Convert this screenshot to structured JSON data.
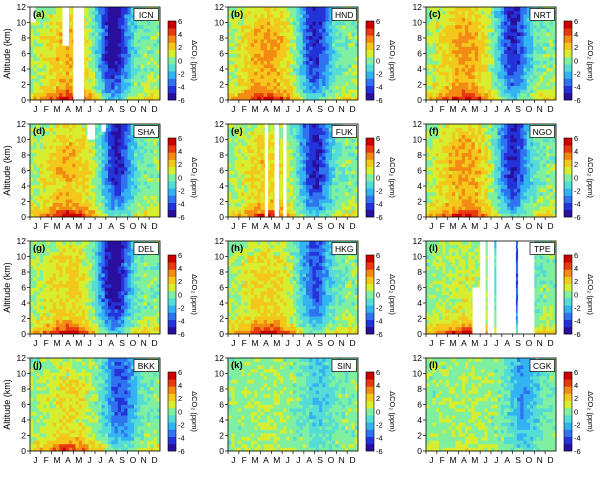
{
  "figure": {
    "y_axis_label": "Altitude (km)",
    "colorbar_label": "ΔCO₂ (ppm)",
    "colorbar_ticks": [
      "6",
      "4",
      "2",
      "0",
      "-2",
      "-4",
      "-6"
    ],
    "colorbar_colors": [
      "#2a0f9e",
      "#2433d9",
      "#2f73f0",
      "#33b3f2",
      "#55dcd6",
      "#7ff0a0",
      "#d6ee2f",
      "#f4c71b",
      "#f28a14",
      "#e83a0f",
      "#cc0000"
    ]
  },
  "chart_data": [
    {
      "type": "heatmap",
      "station": "ICN",
      "panel_label": "(a)",
      "x": [
        "J",
        "F",
        "M",
        "A",
        "M",
        "J",
        "J",
        "A",
        "S",
        "O",
        "N",
        "D"
      ],
      "xlim": [
        1,
        13
      ],
      "ylim": [
        0,
        12
      ],
      "yticks": [
        0,
        2,
        4,
        6,
        8,
        10,
        12
      ],
      "ylabel": "Altitude (km)",
      "zlabel": "ΔCO₂ (ppm)",
      "zlim": [
        -6,
        6
      ],
      "ztick_step": 2,
      "ground_anomaly_ppm": 5.5,
      "aloft_spring_ppm": 2.5,
      "summer_minimum_ppm": -6,
      "summer_minimum_month": 8.7,
      "data_gaps": [
        [
          5.0,
          6.0,
          0,
          12
        ],
        [
          1.0,
          1.5,
          10,
          12
        ],
        [
          4.0,
          4.6,
          7,
          12
        ]
      ]
    },
    {
      "type": "heatmap",
      "station": "HND",
      "panel_label": "(b)",
      "x": [
        "J",
        "F",
        "M",
        "A",
        "M",
        "J",
        "J",
        "A",
        "S",
        "O",
        "N",
        "D"
      ],
      "xlim": [
        1,
        13
      ],
      "ylim": [
        0,
        12
      ],
      "yticks": [
        0,
        2,
        4,
        6,
        8,
        10,
        12
      ],
      "ylabel": "Altitude (km)",
      "zlabel": "ΔCO₂ (ppm)",
      "zlim": [
        -6,
        6
      ],
      "ztick_step": 2,
      "ground_anomaly_ppm": 5.5,
      "aloft_spring_ppm": 3.0,
      "summer_minimum_ppm": -5,
      "summer_minimum_month": 9.0,
      "data_gaps": []
    },
    {
      "type": "heatmap",
      "station": "NRT",
      "panel_label": "(c)",
      "x": [
        "J",
        "F",
        "M",
        "A",
        "M",
        "J",
        "J",
        "A",
        "S",
        "O",
        "N",
        "D"
      ],
      "xlim": [
        1,
        13
      ],
      "ylim": [
        0,
        12
      ],
      "yticks": [
        0,
        2,
        4,
        6,
        8,
        10,
        12
      ],
      "ylabel": "Altitude (km)",
      "zlabel": "ΔCO₂ (ppm)",
      "zlim": [
        -6,
        6
      ],
      "ztick_step": 2,
      "ground_anomaly_ppm": 5.5,
      "aloft_spring_ppm": 3.0,
      "summer_minimum_ppm": -5,
      "summer_minimum_month": 9.0,
      "data_gaps": []
    },
    {
      "type": "heatmap",
      "station": "SHA",
      "panel_label": "(d)",
      "x": [
        "J",
        "F",
        "M",
        "A",
        "M",
        "J",
        "J",
        "A",
        "S",
        "O",
        "N",
        "D"
      ],
      "xlim": [
        1,
        13
      ],
      "ylim": [
        0,
        12
      ],
      "yticks": [
        0,
        2,
        4,
        6,
        8,
        10,
        12
      ],
      "ylabel": "Altitude (km)",
      "zlabel": "ΔCO₂ (ppm)",
      "zlim": [
        -6,
        6
      ],
      "ztick_step": 2,
      "ground_anomaly_ppm": 6.0,
      "aloft_spring_ppm": 2.5,
      "summer_minimum_ppm": -5,
      "summer_minimum_month": 9.0,
      "data_gaps": [
        [
          6.3,
          7.0,
          10,
          12
        ],
        [
          7.6,
          8.0,
          11,
          12
        ]
      ]
    },
    {
      "type": "heatmap",
      "station": "FUK",
      "panel_label": "(e)",
      "x": [
        "J",
        "F",
        "M",
        "A",
        "M",
        "J",
        "J",
        "A",
        "S",
        "O",
        "N",
        "D"
      ],
      "xlim": [
        1,
        13
      ],
      "ylim": [
        0,
        12
      ],
      "yticks": [
        0,
        2,
        4,
        6,
        8,
        10,
        12
      ],
      "ylabel": "Altitude (km)",
      "zlabel": "ΔCO₂ (ppm)",
      "zlim": [
        -6,
        6
      ],
      "ztick_step": 2,
      "ground_anomaly_ppm": 5.0,
      "aloft_spring_ppm": 2.0,
      "summer_minimum_ppm": -5,
      "summer_minimum_month": 9.0,
      "data_gaps": [
        [
          4.4,
          4.7,
          0,
          12
        ],
        [
          5.3,
          5.7,
          0,
          12
        ],
        [
          6.1,
          6.4,
          0,
          12
        ],
        [
          11.6,
          13.0,
          10.5,
          12
        ]
      ]
    },
    {
      "type": "heatmap",
      "station": "NGO",
      "panel_label": "(f)",
      "x": [
        "J",
        "F",
        "M",
        "A",
        "M",
        "J",
        "J",
        "A",
        "S",
        "O",
        "N",
        "D"
      ],
      "xlim": [
        1,
        13
      ],
      "ylim": [
        0,
        12
      ],
      "yticks": [
        0,
        2,
        4,
        6,
        8,
        10,
        12
      ],
      "ylabel": "Altitude (km)",
      "zlabel": "ΔCO₂ (ppm)",
      "zlim": [
        -6,
        6
      ],
      "ztick_step": 2,
      "ground_anomaly_ppm": 5.5,
      "aloft_spring_ppm": 3.0,
      "summer_minimum_ppm": -5,
      "summer_minimum_month": 9.0,
      "data_gaps": []
    },
    {
      "type": "heatmap",
      "station": "DEL",
      "panel_label": "(g)",
      "x": [
        "J",
        "F",
        "M",
        "A",
        "M",
        "J",
        "J",
        "A",
        "S",
        "O",
        "N",
        "D"
      ],
      "xlim": [
        1,
        13
      ],
      "ylim": [
        0,
        12
      ],
      "yticks": [
        0,
        2,
        4,
        6,
        8,
        10,
        12
      ],
      "ylabel": "Altitude (km)",
      "zlabel": "ΔCO₂ (ppm)",
      "zlim": [
        -6,
        6
      ],
      "ztick_step": 2,
      "ground_anomaly_ppm": 6.0,
      "aloft_spring_ppm": 2.0,
      "summer_minimum_ppm": -6,
      "summer_minimum_month": 8.7,
      "data_gaps": []
    },
    {
      "type": "heatmap",
      "station": "HKG",
      "panel_label": "(h)",
      "x": [
        "J",
        "F",
        "M",
        "A",
        "M",
        "J",
        "J",
        "A",
        "S",
        "O",
        "N",
        "D"
      ],
      "xlim": [
        1,
        13
      ],
      "ylim": [
        0,
        12
      ],
      "yticks": [
        0,
        2,
        4,
        6,
        8,
        10,
        12
      ],
      "ylabel": "Altitude (km)",
      "zlabel": "ΔCO₂ (ppm)",
      "zlim": [
        -6,
        6
      ],
      "ztick_step": 2,
      "ground_anomaly_ppm": 6.0,
      "aloft_spring_ppm": 2.0,
      "summer_minimum_ppm": -4,
      "summer_minimum_month": 9.0,
      "data_gaps": []
    },
    {
      "type": "heatmap",
      "station": "TPE",
      "panel_label": "(i)",
      "x": [
        "J",
        "F",
        "M",
        "A",
        "M",
        "J",
        "J",
        "A",
        "S",
        "O",
        "N",
        "D"
      ],
      "xlim": [
        1,
        13
      ],
      "ylim": [
        0,
        12
      ],
      "yticks": [
        0,
        2,
        4,
        6,
        8,
        10,
        12
      ],
      "ylabel": "Altitude (km)",
      "zlabel": "ΔCO₂ (ppm)",
      "zlim": [
        -6,
        6
      ],
      "ztick_step": 2,
      "ground_anomaly_ppm": 5.5,
      "aloft_spring_ppm": 1.0,
      "summer_minimum_ppm": -4,
      "summer_minimum_month": 9.0,
      "data_gaps": [
        [
          6.0,
          6.5,
          0,
          12
        ],
        [
          6.7,
          7.3,
          0,
          12
        ],
        [
          7.5,
          9.3,
          0,
          12
        ],
        [
          9.5,
          11.0,
          0,
          12
        ],
        [
          5.3,
          6.0,
          0,
          6
        ]
      ]
    },
    {
      "type": "heatmap",
      "station": "BKK",
      "panel_label": "(j)",
      "x": [
        "J",
        "F",
        "M",
        "A",
        "M",
        "J",
        "J",
        "A",
        "S",
        "O",
        "N",
        "D"
      ],
      "xlim": [
        1,
        13
      ],
      "ylim": [
        0,
        12
      ],
      "yticks": [
        0,
        2,
        4,
        6,
        8,
        10,
        12
      ],
      "ylabel": "Altitude (km)",
      "zlabel": "ΔCO₂ (ppm)",
      "zlim": [
        -6,
        6
      ],
      "ztick_step": 2,
      "ground_anomaly_ppm": 5.0,
      "aloft_spring_ppm": 1.5,
      "summer_minimum_ppm": -4,
      "summer_minimum_month": 9.3,
      "data_gaps": []
    },
    {
      "type": "heatmap",
      "station": "SIN",
      "panel_label": "(k)",
      "x": [
        "J",
        "F",
        "M",
        "A",
        "M",
        "J",
        "J",
        "A",
        "S",
        "O",
        "N",
        "D"
      ],
      "xlim": [
        1,
        13
      ],
      "ylim": [
        0,
        12
      ],
      "yticks": [
        0,
        2,
        4,
        6,
        8,
        10,
        12
      ],
      "ylabel": "Altitude (km)",
      "zlabel": "ΔCO₂ (ppm)",
      "zlim": [
        -6,
        6
      ],
      "ztick_step": 2,
      "ground_anomaly_ppm": 1.0,
      "aloft_spring_ppm": 0.5,
      "summer_minimum_ppm": -1.5,
      "summer_minimum_month": 9.3,
      "data_gaps": []
    },
    {
      "type": "heatmap",
      "station": "CGK",
      "panel_label": "(l)",
      "x": [
        "J",
        "F",
        "M",
        "A",
        "M",
        "J",
        "J",
        "A",
        "S",
        "O",
        "N",
        "D"
      ],
      "xlim": [
        1,
        13
      ],
      "ylim": [
        0,
        12
      ],
      "yticks": [
        0,
        2,
        4,
        6,
        8,
        10,
        12
      ],
      "ylabel": "Altitude (km)",
      "zlabel": "ΔCO₂ (ppm)",
      "zlim": [
        -6,
        6
      ],
      "ztick_step": 2,
      "ground_anomaly_ppm": 1.0,
      "aloft_spring_ppm": 0.5,
      "summer_minimum_ppm": -2.5,
      "summer_minimum_month": 10.0,
      "data_gaps": [
        [
          11.1,
          11.4,
          11,
          12
        ]
      ]
    }
  ]
}
